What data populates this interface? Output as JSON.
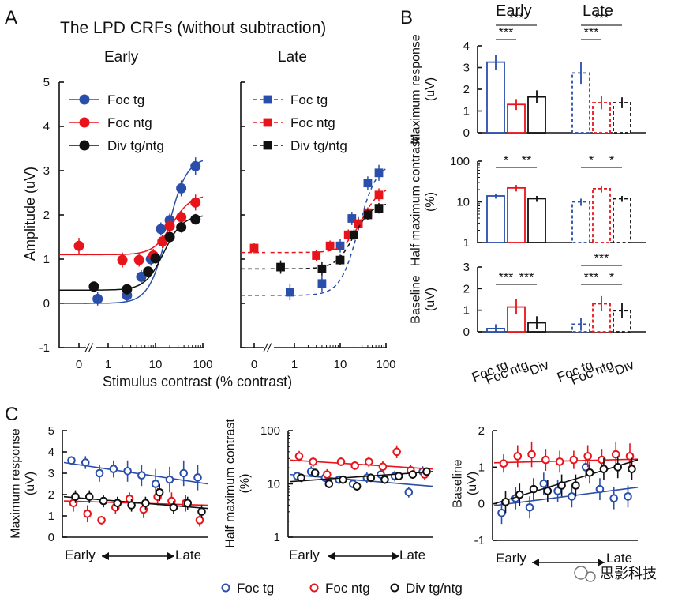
{
  "colors": {
    "foc_tg": "#2a4faa",
    "foc_ntg": "#e8141b",
    "div": "#111111",
    "watermark": "#555555"
  },
  "panel_labels": {
    "A": "A",
    "B": "B",
    "C": "C"
  },
  "watermark": "思影科技",
  "chart_data": [
    {
      "id": "A-early",
      "type": "line",
      "title": "The LPD CRFs (without subtraction)",
      "subtitle": "Early",
      "xlabel": "Stimulus contrast (% contrast)",
      "ylabel": "Amplitude (uV)",
      "x_scale": "log",
      "x_ticks": [
        "0",
        "1",
        "10",
        "100"
      ],
      "axis_break": "//",
      "ylim": [
        -1,
        5
      ],
      "y_ticks": [
        -1,
        0,
        1,
        2,
        3,
        4,
        5
      ],
      "legend": [
        "Foc tg",
        "Foc ntg",
        "Div tg/ntg"
      ],
      "legend_placement": "top-left",
      "series": [
        {
          "name": "Foc tg",
          "color_key": "foc_tg",
          "zero_point": null,
          "points": [
            [
              0.6,
              0.1
            ],
            [
              2.5,
              0.18
            ],
            [
              5,
              0.6
            ],
            [
              8,
              1.0
            ],
            [
              13,
              1.68
            ],
            [
              20,
              1.88
            ],
            [
              35,
              2.6
            ],
            [
              70,
              3.1
            ]
          ],
          "err": [
            0.15,
            0.15,
            0.15,
            0.15,
            0.15,
            0.15,
            0.18,
            0.2
          ],
          "fit": {
            "base": 0.0,
            "rmax": 3.3,
            "c50": 18,
            "n": 2.2
          }
        },
        {
          "name": "Foc ntg",
          "color_key": "foc_ntg",
          "zero_point": [
            1.3,
            0.18
          ],
          "points": [
            [
              2.0,
              0.98
            ],
            [
              4.5,
              0.98
            ],
            [
              9,
              1.08
            ],
            [
              14,
              1.4
            ],
            [
              20,
              1.75
            ],
            [
              35,
              1.95
            ],
            [
              70,
              2.28
            ]
          ],
          "err": [
            0.17,
            0.15,
            0.15,
            0.15,
            0.15,
            0.15,
            0.18
          ],
          "fit": {
            "base": 1.1,
            "rmax": 1.35,
            "c50": 22,
            "n": 2.2
          }
        },
        {
          "name": "Div tg/ntg",
          "color_key": "div",
          "zero_point": null,
          "points": [
            [
              0.5,
              0.38
            ],
            [
              2.5,
              0.32
            ],
            [
              7,
              0.72
            ],
            [
              10,
              1.02
            ],
            [
              20,
              1.5
            ],
            [
              35,
              1.72
            ],
            [
              70,
              1.9
            ]
          ],
          "err": [
            0.1,
            0.12,
            0.1,
            0.12,
            0.12,
            0.12,
            0.12
          ],
          "fit": {
            "base": 0.3,
            "rmax": 1.7,
            "c50": 15,
            "n": 2.2
          }
        }
      ]
    },
    {
      "id": "A-late",
      "type": "line",
      "subtitle": "Late",
      "x_scale": "log",
      "x_ticks": [
        "0",
        "1",
        "10",
        "100"
      ],
      "axis_break": "//",
      "ylim": [
        -1,
        5
      ],
      "legend": [
        "Foc tg",
        "Foc ntg",
        "Div tg/ntg"
      ],
      "legend_placement": "top-left",
      "series": [
        {
          "name": "Foc tg",
          "color_key": "foc_tg",
          "zero_point": null,
          "points": [
            [
              0.8,
              0.25
            ],
            [
              4,
              0.45
            ],
            [
              10,
              1.3
            ],
            [
              18,
              1.92
            ],
            [
              25,
              1.8
            ],
            [
              40,
              2.72
            ],
            [
              70,
              2.95
            ]
          ],
          "err": [
            0.18,
            0.18,
            0.15,
            0.15,
            0.15,
            0.15,
            0.18
          ],
          "fit": {
            "base": 0.18,
            "rmax": 3.0,
            "c50": 25,
            "n": 2.2
          }
        },
        {
          "name": "Foc ntg",
          "color_key": "foc_ntg",
          "zero_point": [
            1.25,
            0.12
          ],
          "points": [
            [
              3,
              1.08
            ],
            [
              6,
              1.3
            ],
            [
              15,
              1.55
            ],
            [
              25,
              1.8
            ],
            [
              40,
              2.05
            ],
            [
              70,
              2.45
            ]
          ],
          "err": [
            0.12,
            0.12,
            0.12,
            0.12,
            0.12,
            0.15
          ],
          "fit": {
            "base": 1.15,
            "rmax": 1.5,
            "c50": 30,
            "n": 2.2
          }
        },
        {
          "name": "Div tg/ntg",
          "color_key": "div",
          "zero_point": null,
          "points": [
            [
              0.5,
              0.82
            ],
            [
              4,
              0.78
            ],
            [
              10,
              0.98
            ],
            [
              20,
              1.55
            ],
            [
              40,
              2.0
            ],
            [
              70,
              2.15
            ]
          ],
          "err": [
            0.15,
            0.15,
            0.12,
            0.12,
            0.12,
            0.12
          ],
          "fit": {
            "base": 0.78,
            "rmax": 1.5,
            "c50": 20,
            "n": 2.2
          }
        }
      ]
    },
    {
      "id": "B",
      "type": "bar",
      "column_headers": [
        "Early",
        "Late"
      ],
      "categories": [
        "Foc tg",
        "Foc ntg",
        "Div"
      ],
      "panels": [
        {
          "ylabel": "Maximum response (uV)",
          "y_scale": "linear",
          "ylim": [
            0,
            4
          ],
          "y_ticks": [
            "0",
            "1",
            "2",
            "3",
            "4"
          ],
          "early": [
            3.25,
            1.3,
            1.65
          ],
          "late": [
            2.75,
            1.38,
            1.38
          ],
          "err_early": [
            0.35,
            0.25,
            0.3
          ],
          "err_late": [
            0.5,
            0.3,
            0.25
          ],
          "sig": [
            {
              "group": "early",
              "from": 0,
              "to": 1,
              "label": "***"
            },
            {
              "group": "early",
              "from": 0,
              "to": 2,
              "label": "***"
            },
            {
              "group": "late",
              "from": 0,
              "to": 1,
              "label": "***"
            },
            {
              "group": "late",
              "from": 0,
              "to": 2,
              "label": "***"
            }
          ]
        },
        {
          "ylabel": "Half maximum contrast (%)",
          "y_scale": "log",
          "ylim": [
            1,
            100
          ],
          "y_ticks": [
            "1",
            "10",
            "100"
          ],
          "early": [
            14,
            22,
            12
          ],
          "late": [
            10,
            21,
            12
          ],
          "err_early": [
            2,
            4,
            2
          ],
          "err_late": [
            2,
            4,
            2
          ],
          "sig": [
            {
              "group": "early",
              "from": 0,
              "to": 1,
              "label": "*"
            },
            {
              "group": "early",
              "from": 1,
              "to": 2,
              "label": "**"
            },
            {
              "group": "late",
              "from": 0,
              "to": 1,
              "label": "*"
            },
            {
              "group": "late",
              "from": 1,
              "to": 2,
              "label": "*"
            }
          ]
        },
        {
          "ylabel": "Baseline (uV)",
          "y_scale": "linear",
          "ylim": [
            0,
            3
          ],
          "y_ticks": [
            "0",
            "1",
            "2",
            "3"
          ],
          "early": [
            0.15,
            1.15,
            0.42
          ],
          "late": [
            0.35,
            1.3,
            0.98
          ],
          "err_early": [
            0.2,
            0.35,
            0.3
          ],
          "err_late": [
            0.3,
            0.35,
            0.35
          ],
          "sig": [
            {
              "group": "early",
              "from": 0,
              "to": 1,
              "label": "***"
            },
            {
              "group": "early",
              "from": 1,
              "to": 2,
              "label": "***"
            },
            {
              "group": "late",
              "from": 0,
              "to": 1,
              "label": "***"
            },
            {
              "group": "late",
              "from": 1,
              "to": 2,
              "label": "*"
            },
            {
              "group": "late",
              "from": 0,
              "to": 2,
              "label": "***"
            }
          ]
        }
      ]
    },
    {
      "id": "C",
      "type": "scatter",
      "xlabel_left": "Early",
      "xlabel_right": "Late",
      "legend": [
        "Foc tg",
        "Foc ntg",
        "Div tg/ntg"
      ],
      "legend_placement": "bottom",
      "panels": [
        {
          "ylabel": "Maximum response (uV)",
          "y_scale": "linear",
          "ylim": [
            0,
            5
          ],
          "y_ticks": [
            "0",
            "1",
            "2",
            "3",
            "4",
            "5"
          ],
          "series": [
            {
              "name": "Foc tg",
              "color_key": "foc_tg",
              "values": [
                3.6,
                3.5,
                3.0,
                3.2,
                3.1,
                2.9,
                2.5,
                2.7,
                3.0,
                2.8
              ],
              "err": [
                0.2,
                0.3,
                0.4,
                0.4,
                0.5,
                0.5,
                0.7,
                0.6,
                0.6,
                0.6
              ],
              "fit": [
                3.5,
                2.5
              ]
            },
            {
              "name": "Foc ntg",
              "color_key": "foc_ntg",
              "values": [
                1.6,
                1.1,
                0.8,
                1.4,
                1.8,
                1.3,
                1.9,
                1.7,
                1.6,
                0.8
              ],
              "err": [
                0.4,
                0.4,
                0.2,
                0.3,
                0.3,
                0.4,
                0.4,
                0.4,
                0.4,
                0.3
              ],
              "fit": [
                1.7,
                1.5
              ]
            },
            {
              "name": "Div tg/ntg",
              "color_key": "div",
              "values": [
                1.9,
                1.9,
                1.7,
                1.6,
                1.5,
                1.6,
                2.1,
                1.4,
                1.6,
                1.2
              ],
              "err": [
                0.3,
                0.3,
                0.3,
                0.3,
                0.3,
                0.3,
                0.4,
                0.3,
                0.3,
                0.3
              ],
              "fit": [
                1.9,
                1.35
              ]
            }
          ]
        },
        {
          "ylabel": "Half maximum contrast (%)",
          "y_scale": "log",
          "ylim": [
            1,
            100
          ],
          "y_ticks": [
            "1",
            "10",
            "100"
          ],
          "series": [
            {
              "name": "Foc tg",
              "color_key": "foc_tg",
              "values": [
                14,
                17,
                13,
                12,
                10,
                13,
                15,
                14,
                7,
                17
              ],
              "err": [
                0.08,
                0.1,
                0.08,
                0.08,
                0.08,
                0.1,
                0.1,
                0.1,
                0.1,
                0.1
              ],
              "fit": [
                15,
                9
              ]
            },
            {
              "name": "Foc ntg",
              "color_key": "foc_ntg",
              "values": [
                33,
                26,
                15,
                26,
                22,
                26,
                21,
                40,
                18,
                15
              ],
              "err": [
                0.1,
                0.1,
                0.1,
                0.08,
                0.08,
                0.1,
                0.1,
                0.12,
                0.1,
                0.1
              ],
              "fit": [
                28,
                19
              ]
            },
            {
              "name": "Div tg/ntg",
              "color_key": "div",
              "values": [
                13,
                16,
                10,
                12,
                9,
                13,
                12,
                14,
                15,
                17
              ],
              "err": [
                0.08,
                0.08,
                0.08,
                0.08,
                0.08,
                0.08,
                0.08,
                0.08,
                0.08,
                0.08
              ],
              "fit": [
                11,
                17
              ]
            }
          ]
        },
        {
          "ylabel": "Baseline (uV)",
          "y_scale": "linear",
          "ylim": [
            -1,
            2
          ],
          "y_ticks": [
            "-1",
            "0",
            "1",
            "2"
          ],
          "series": [
            {
              "name": "Foc tg",
              "color_key": "foc_tg",
              "values": [
                -0.25,
                0.15,
                -0.1,
                0.55,
                0.35,
                0.2,
                1.0,
                0.4,
                0.15,
                0.2
              ],
              "err": [
                0.3,
                0.3,
                0.3,
                0.3,
                0.3,
                0.3,
                0.3,
                0.3,
                0.3,
                0.3
              ],
              "fit": [
                -0.05,
                0.45
              ]
            },
            {
              "name": "Foc ntg",
              "color_key": "foc_ntg",
              "values": [
                1.1,
                1.3,
                1.35,
                1.2,
                1.15,
                1.2,
                1.3,
                1.2,
                1.35,
                1.3
              ],
              "err": [
                0.25,
                0.3,
                0.35,
                0.3,
                0.3,
                0.25,
                0.3,
                0.3,
                0.35,
                0.35
              ],
              "fit": [
                1.12,
                1.22
              ]
            },
            {
              "name": "Div tg/ntg",
              "color_key": "div",
              "values": [
                0.05,
                0.25,
                0.4,
                0.35,
                0.5,
                0.5,
                0.85,
                0.95,
                1.0,
                0.95
              ],
              "err": [
                0.3,
                0.3,
                0.3,
                0.3,
                0.3,
                0.3,
                0.3,
                0.3,
                0.3,
                0.3
              ],
              "fit": [
                0.0,
                1.2
              ]
            }
          ]
        }
      ]
    }
  ]
}
